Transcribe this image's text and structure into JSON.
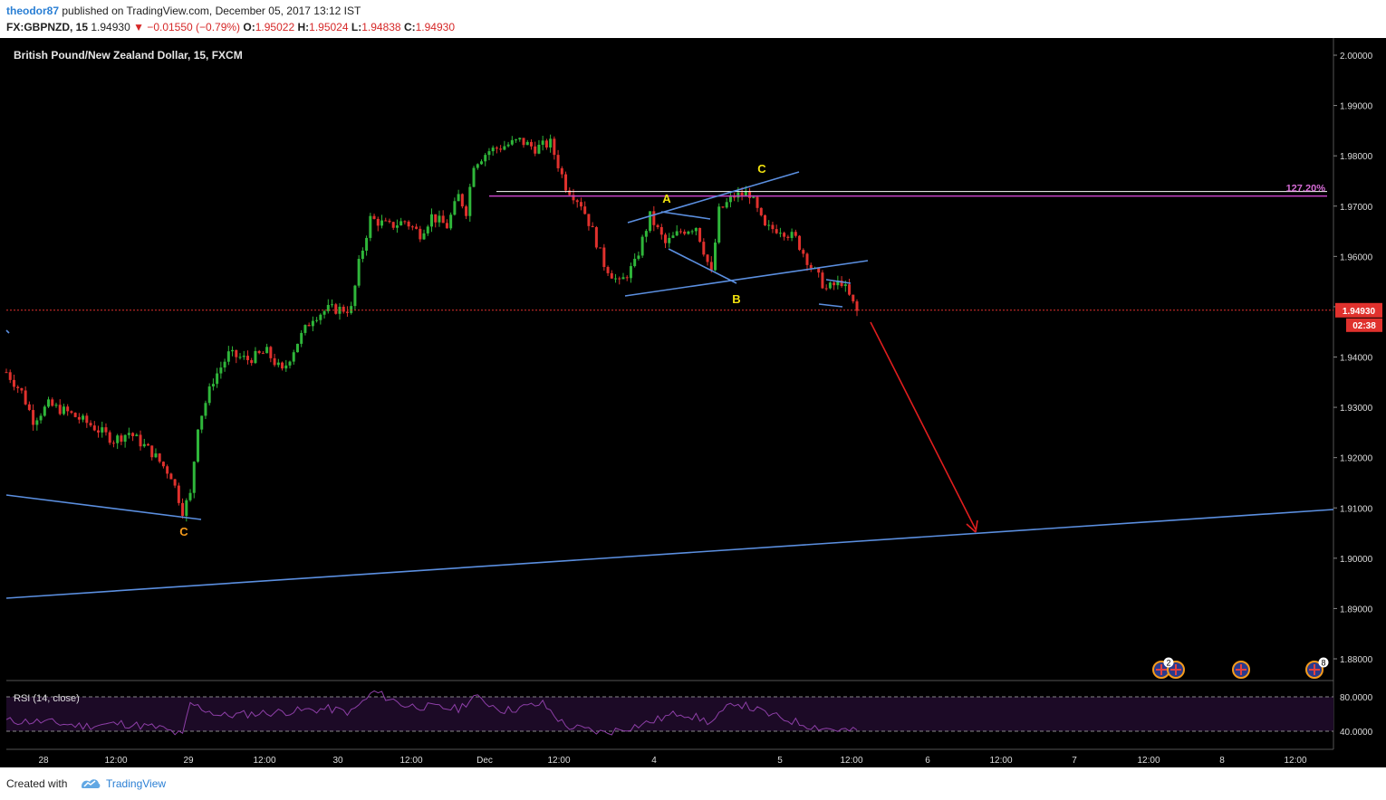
{
  "header": {
    "user": "theodor87",
    "published": "published on TradingView.com, December 05, 2017 13:12 IST",
    "symbol": "FX:GBPNZD, 15",
    "last": "1.94930",
    "change": "▼ −0.01550 (−0.79%)",
    "o_label": "O:",
    "o": "1.95022",
    "h_label": "H:",
    "h": "1.95024",
    "l_label": "L:",
    "l": "1.94838",
    "c_label": "C:",
    "c": "1.94930"
  },
  "chart_data": {
    "type": "candlestick",
    "title": "British Pound/New Zealand Dollar, 15, FXCM",
    "ylim": [
      1.875,
      2.005
    ],
    "y_ticks": [
      "2.00000",
      "1.99000",
      "1.98000",
      "1.97000",
      "1.96000",
      "1.95000",
      "1.94000",
      "1.93000",
      "1.92000",
      "1.91000",
      "1.90000",
      "1.89000",
      "1.88000"
    ],
    "x_ticks": [
      "28",
      "12:00",
      "29",
      "12:00",
      "30",
      "12:00",
      "Dec",
      "12:00",
      "4",
      "5",
      "12:00",
      "6",
      "12:00",
      "7",
      "12:00",
      "8",
      "12:00"
    ],
    "current_price_label": "1.94930",
    "countdown_label": "02:38",
    "current_price": 1.9493,
    "fib_label": "127.20%",
    "fib_level": 1.972,
    "waves": [
      "C",
      "A",
      "B",
      "C"
    ],
    "wave_colors": {
      "orange": "#f59b1c",
      "yellow": "#f2e20e"
    },
    "colors": {
      "up": "#2fb63a",
      "down": "#e0312d",
      "trend": "#5b8fe0",
      "arrow": "#e01e1e",
      "fib": "#c743c7",
      "rsi": "#8e3fa8"
    },
    "price_path": [
      [
        0,
        1.937
      ],
      [
        4,
        1.933
      ],
      [
        7,
        1.9275
      ],
      [
        11,
        1.9305
      ],
      [
        16,
        1.929
      ],
      [
        22,
        1.9265
      ],
      [
        28,
        1.9235
      ],
      [
        32,
        1.925
      ],
      [
        38,
        1.921
      ],
      [
        43,
        1.9165
      ],
      [
        46,
        1.9095
      ],
      [
        48,
        1.9125
      ],
      [
        50,
        1.9265
      ],
      [
        54,
        1.9355
      ],
      [
        58,
        1.9405
      ],
      [
        63,
        1.9395
      ],
      [
        68,
        1.941
      ],
      [
        72,
        1.937
      ],
      [
        76,
        1.943
      ],
      [
        80,
        1.948
      ],
      [
        84,
        1.9495
      ],
      [
        90,
        1.9495
      ],
      [
        92,
        1.9585
      ],
      [
        95,
        1.9675
      ],
      [
        100,
        1.966
      ],
      [
        104,
        1.967
      ],
      [
        108,
        1.9645
      ],
      [
        111,
        1.968
      ],
      [
        115,
        1.966
      ],
      [
        118,
        1.972
      ],
      [
        120,
        1.969
      ],
      [
        122,
        1.9785
      ],
      [
        126,
        1.981
      ],
      [
        130,
        1.982
      ],
      [
        134,
        1.983
      ],
      [
        138,
        1.9815
      ],
      [
        142,
        1.9825
      ],
      [
        146,
        1.974
      ],
      [
        150,
        1.9705
      ],
      [
        153,
        1.965
      ],
      [
        156,
        1.9585
      ],
      [
        160,
        1.9545
      ],
      [
        164,
        1.9585
      ],
      [
        168,
        1.968
      ],
      [
        172,
        1.9625
      ],
      [
        176,
        1.965
      ],
      [
        180,
        1.966
      ],
      [
        184,
        1.9565
      ],
      [
        186,
        1.969
      ],
      [
        190,
        1.972
      ],
      [
        194,
        1.9725
      ],
      [
        198,
        1.9655
      ],
      [
        202,
        1.9655
      ],
      [
        206,
        1.9635
      ],
      [
        210,
        1.958
      ],
      [
        214,
        1.9535
      ],
      [
        218,
        1.955
      ],
      [
        222,
        1.949
      ]
    ],
    "rsi": {
      "label": "RSI (14, close)",
      "levels": [
        80.0,
        40.0
      ],
      "level_labels": [
        "80.0000",
        "40.0000"
      ],
      "path": [
        [
          0,
          52
        ],
        [
          10,
          51
        ],
        [
          20,
          46
        ],
        [
          30,
          49
        ],
        [
          40,
          44
        ],
        [
          46,
          35
        ],
        [
          48,
          72
        ],
        [
          56,
          58
        ],
        [
          70,
          62
        ],
        [
          84,
          66
        ],
        [
          90,
          62
        ],
        [
          96,
          86
        ],
        [
          104,
          70
        ],
        [
          118,
          66
        ],
        [
          122,
          80
        ],
        [
          130,
          64
        ],
        [
          140,
          72
        ],
        [
          146,
          46
        ],
        [
          156,
          38
        ],
        [
          166,
          48
        ],
        [
          176,
          62
        ],
        [
          184,
          50
        ],
        [
          190,
          74
        ],
        [
          200,
          58
        ],
        [
          210,
          46
        ],
        [
          216,
          42
        ],
        [
          222,
          40
        ]
      ]
    },
    "event_markers": [
      "2",
      "8"
    ]
  },
  "footer": {
    "created_with": "Created with",
    "brand": "TradingView"
  }
}
